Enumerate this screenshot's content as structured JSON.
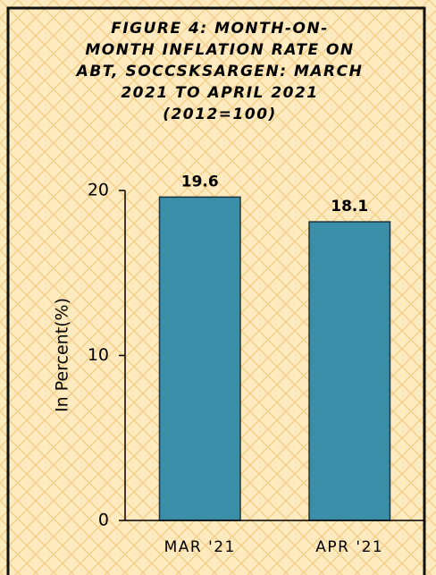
{
  "chart_data": {
    "type": "bar",
    "title": [
      "FIGURE 4: MONTH-ON-",
      "MONTH INFLATION RATE ON",
      "ABT, SOCCSKSARGEN: MARCH",
      "2021 TO APRIL 2021",
      "(2012=100)"
    ],
    "y_label": "In Percent(%)",
    "categories": [
      "MAR '21",
      "APR '21"
    ],
    "values": [
      19.6,
      18.1
    ],
    "color": "#3b8ea8",
    "ylim": [
      0,
      20
    ],
    "yticks": [
      0,
      10,
      20
    ],
    "grid": false
  }
}
